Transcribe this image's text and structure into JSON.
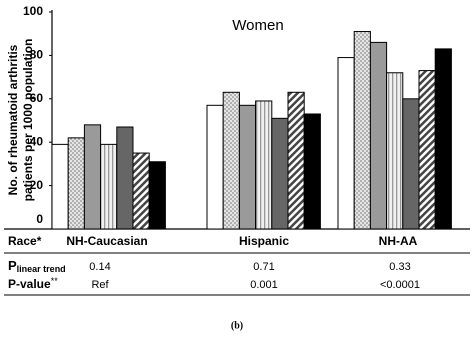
{
  "chart_data": {
    "type": "bar",
    "title": "Women",
    "y_label": [
      "No. of rheumatoid arthritis",
      "patients per 1000 population"
    ],
    "categories": [
      "NH-Caucasian",
      "Hispanic",
      "NH-AA"
    ],
    "series": [
      {
        "color": "#ffffff",
        "pattern": "none",
        "values": [
          39,
          57,
          79
        ]
      },
      {
        "color": "#d9d9d9",
        "pattern": "dots",
        "values": [
          42,
          63,
          91
        ]
      },
      {
        "color": "#9a9a9a",
        "pattern": "none",
        "values": [
          48,
          57,
          86
        ]
      },
      {
        "color": "#e8e8e8",
        "pattern": "vertical",
        "values": [
          39,
          59,
          72
        ]
      },
      {
        "color": "#666666",
        "pattern": "none",
        "values": [
          47,
          51,
          60
        ]
      },
      {
        "color": "#ffffff",
        "pattern": "diagonal",
        "values": [
          35,
          63,
          73
        ]
      },
      {
        "color": "#000000",
        "pattern": "none",
        "values": [
          31,
          53,
          83
        ]
      }
    ],
    "ylim": [
      0,
      100
    ],
    "yticks": [
      0,
      20,
      40,
      60,
      80,
      100
    ],
    "grid": false
  },
  "table": {
    "header": "Race*",
    "rows": [
      {
        "label": {
          "main": "P",
          "sub": "linear trend"
        },
        "cells": [
          "0.14",
          "0.71",
          "0.33"
        ]
      },
      {
        "label": {
          "main": "P-value",
          "sup": "**"
        },
        "cells": [
          "Ref",
          "0.001",
          "<0.0001"
        ]
      }
    ]
  },
  "caption": "(b)"
}
